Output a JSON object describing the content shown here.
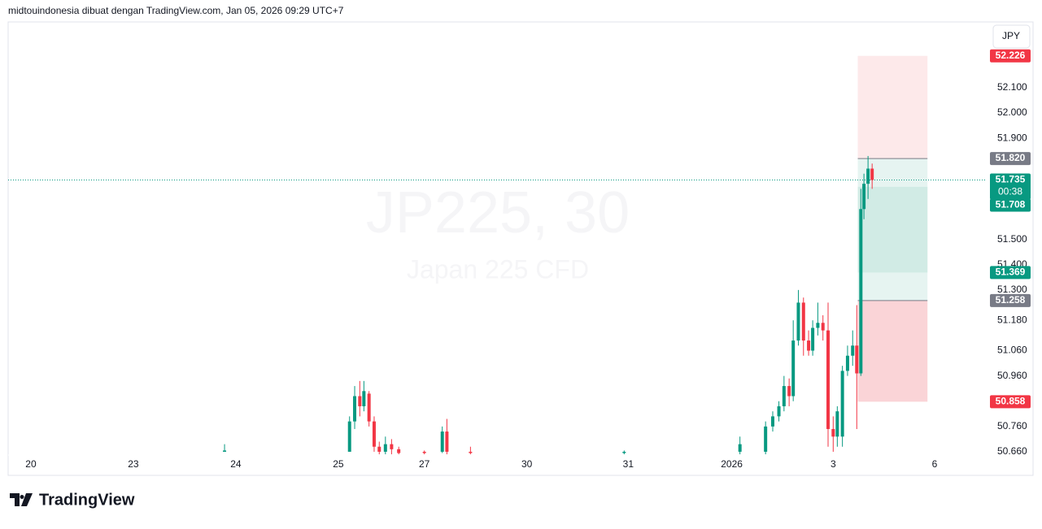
{
  "header": {
    "text": "midtouindonesia dibuat dengan TradingView.com, Jan 05, 2026 09:29 UTC+7"
  },
  "logo": {
    "text": "TradingView"
  },
  "chart_data": {
    "type": "candlestick",
    "title": "JP225, 30",
    "subtitle": "Japan 225 CFD",
    "currency": "JPY",
    "grid": false,
    "up_color": "#089981",
    "down_color": "#f23645",
    "xlim": [
      -0.222,
      9.32
    ],
    "xticks": [
      {
        "value": 0,
        "label": "20"
      },
      {
        "value": 1,
        "label": "23"
      },
      {
        "value": 2,
        "label": "24"
      },
      {
        "value": 3,
        "label": "25"
      },
      {
        "value": 3.84,
        "label": "27"
      },
      {
        "value": 4.84,
        "label": "30"
      },
      {
        "value": 5.83,
        "label": "31"
      },
      {
        "value": 6.84,
        "label": "2026"
      },
      {
        "value": 7.83,
        "label": "3"
      },
      {
        "value": 8.82,
        "label": "6"
      }
    ],
    "ylim": [
      50.647,
      52.357
    ],
    "yticks": [
      {
        "value": 52.1,
        "label": "52.100"
      },
      {
        "value": 52.0,
        "label": "52.000"
      },
      {
        "value": 51.9,
        "label": "51.900"
      },
      {
        "value": 51.5,
        "label": "51.500"
      },
      {
        "value": 51.4,
        "label": "51.400"
      },
      {
        "value": 51.3,
        "label": "51.300"
      },
      {
        "value": 51.18,
        "label": "51.180"
      },
      {
        "value": 51.06,
        "label": "51.060"
      },
      {
        "value": 50.96,
        "label": "50.960"
      },
      {
        "value": 50.76,
        "label": "50.760"
      },
      {
        "value": 50.66,
        "label": "50.660"
      }
    ],
    "x": [
      1.89,
      3.11,
      3.16,
      3.21,
      3.25,
      3.3,
      3.35,
      3.4,
      3.46,
      3.52,
      3.59,
      3.84,
      4.015,
      4.06,
      4.29,
      5.79,
      6.92,
      7.17,
      7.24,
      7.3,
      7.35,
      7.4,
      7.44,
      7.49,
      7.54,
      7.59,
      7.63,
      7.68,
      7.73,
      7.78,
      7.83,
      7.87,
      7.92,
      7.97,
      8.02,
      8.06,
      8.1,
      8.13,
      8.17,
      8.21
    ],
    "open": [
      50.66,
      50.66,
      50.78,
      50.88,
      50.84,
      50.89,
      50.78,
      50.68,
      50.66,
      50.69,
      50.67,
      50.66,
      50.66,
      50.74,
      50.66,
      50.655,
      50.66,
      50.66,
      50.76,
      50.8,
      50.84,
      50.92,
      50.88,
      51.1,
      51.25,
      51.1,
      51.06,
      51.15,
      51.17,
      51.14,
      50.75,
      50.72,
      50.72,
      50.98,
      51.04,
      51.08,
      50.97,
      51.62,
      51.72,
      51.78
    ],
    "high": [
      50.69,
      50.8,
      50.92,
      50.94,
      50.94,
      50.9,
      50.8,
      50.7,
      50.72,
      50.71,
      50.68,
      50.665,
      50.76,
      50.79,
      50.68,
      50.665,
      50.72,
      50.78,
      50.82,
      50.86,
      50.96,
      50.95,
      51.18,
      51.3,
      51.27,
      51.14,
      51.18,
      51.25,
      51.2,
      51.25,
      50.8,
      50.84,
      51.0,
      51.08,
      51.14,
      51.24,
      51.7,
      51.76,
      51.83,
      51.8
    ],
    "low": [
      50.66,
      50.66,
      50.75,
      50.8,
      50.82,
      50.76,
      50.66,
      50.65,
      50.65,
      50.65,
      50.65,
      50.65,
      50.655,
      50.65,
      50.65,
      50.65,
      50.65,
      50.65,
      50.74,
      50.78,
      50.82,
      50.84,
      50.86,
      51.08,
      51.04,
      51.04,
      51.04,
      51.12,
      51.1,
      50.68,
      50.66,
      50.68,
      50.68,
      50.96,
      51.0,
      50.75,
      50.96,
      51.58,
      51.66,
      51.7
    ],
    "close": [
      50.665,
      50.78,
      50.88,
      50.84,
      50.9,
      50.78,
      50.68,
      50.66,
      50.69,
      50.67,
      50.655,
      50.655,
      50.74,
      50.66,
      50.655,
      50.66,
      50.69,
      50.76,
      50.8,
      50.84,
      50.92,
      50.88,
      51.1,
      51.25,
      51.1,
      51.06,
      51.15,
      51.17,
      51.14,
      50.75,
      50.72,
      50.82,
      50.98,
      51.04,
      51.08,
      50.97,
      51.62,
      51.72,
      51.78,
      51.735
    ],
    "current_price": {
      "value": 51.735,
      "label": "51.735",
      "countdown": "00:38",
      "color": "#089981"
    },
    "price_markers": [
      {
        "value": 52.226,
        "label": "52.226",
        "color": "#f23645"
      },
      {
        "value": 51.82,
        "label": "51.820",
        "color": "#787b86"
      },
      {
        "value": 51.708,
        "label": "51.708",
        "color": "#089981"
      },
      {
        "value": 51.369,
        "label": "51.369",
        "color": "#089981"
      },
      {
        "value": 51.258,
        "label": "51.258",
        "color": "#787b86"
      },
      {
        "value": 50.858,
        "label": "50.858",
        "color": "#f23645"
      }
    ],
    "position_tool": {
      "x": [
        8.07,
        8.75
      ],
      "zones": [
        {
          "from": 52.226,
          "to": 51.82,
          "color": "#fde9ea"
        },
        {
          "from": 51.82,
          "to": 51.258,
          "color": "#e6f4f1"
        },
        {
          "from": 51.708,
          "to": 51.369,
          "color": "#d1ebe5"
        },
        {
          "from": 51.258,
          "to": 50.858,
          "color": "#fad4d7"
        }
      ]
    }
  }
}
